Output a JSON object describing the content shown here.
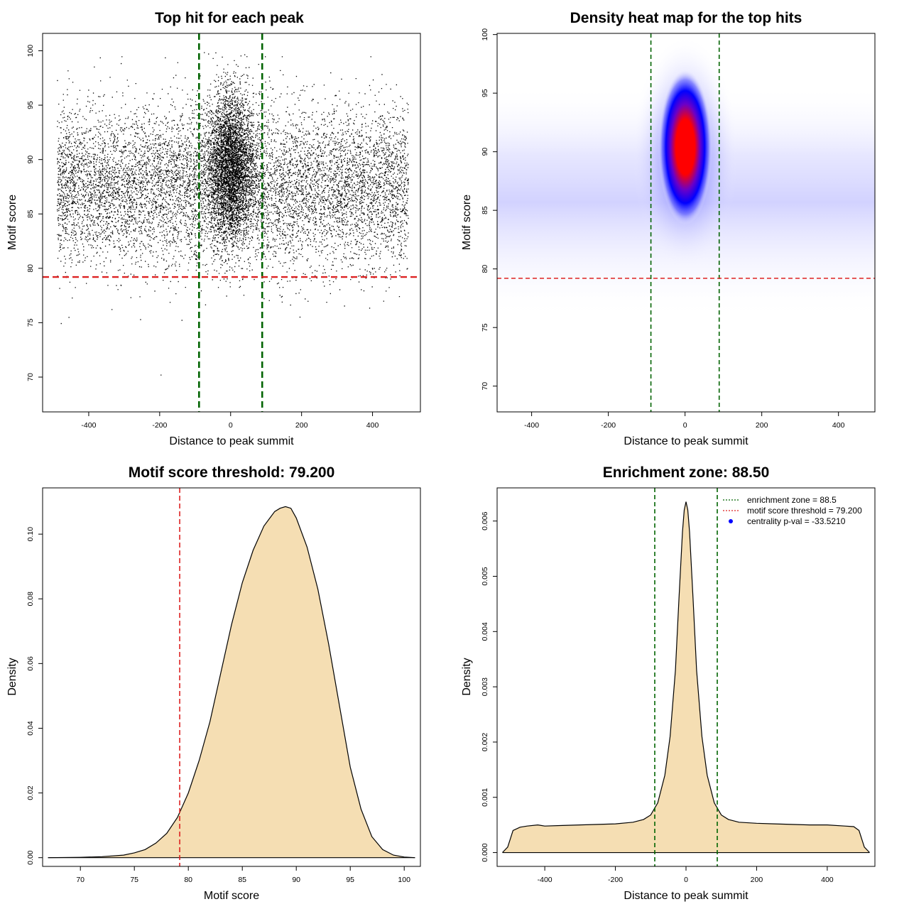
{
  "chart_data": [
    {
      "type": "scatter",
      "title": "Top hit for each peak",
      "xlabel": "Distance to peak summit",
      "ylabel": "Motif score",
      "xlim": [
        -530,
        535
      ],
      "ylim": [
        66.8,
        101.6
      ],
      "xticks": [
        -400,
        -200,
        0,
        200,
        400
      ],
      "yticks": [
        70,
        75,
        80,
        85,
        90,
        95,
        100
      ],
      "points_sampled": {
        "background_x_range": [
          -490,
          500
        ],
        "background_score_mean": 87.5,
        "central_x_range": [
          -90,
          90
        ],
        "central_score_mean": 89.5
      },
      "vlines": [
        -89,
        89
      ],
      "hline": 79.2,
      "vline_color": "#006400",
      "hline_color": "#dd2222"
    },
    {
      "type": "heatmap",
      "title": "Density heat map for the top hits",
      "xlabel": "Distance to peak summit",
      "ylabel": "Motif score",
      "xlim": [
        -490,
        495
      ],
      "ylim": [
        67.8,
        100.1
      ],
      "xticks": [
        -400,
        -200,
        0,
        200,
        400
      ],
      "yticks": [
        70,
        75,
        80,
        85,
        90,
        95,
        100
      ],
      "peak": {
        "x": 0,
        "score": 90.5
      },
      "vlines": [
        -89,
        89
      ],
      "hline": 79.2,
      "colors": [
        "#ffffff",
        "#0000ff",
        "#ff0000"
      ]
    },
    {
      "type": "area",
      "title": "Motif score threshold: 79.200",
      "xlabel": "Motif score",
      "ylabel": "Density",
      "xlim": [
        66.5,
        101.5
      ],
      "ylim": [
        -0.0027,
        0.1143
      ],
      "xticks": [
        70,
        75,
        80,
        85,
        90,
        95,
        100
      ],
      "yticks": [
        0.0,
        0.02,
        0.04,
        0.06,
        0.08,
        0.1
      ],
      "ytick_labels": [
        "0.00",
        "0.02",
        "0.04",
        "0.06",
        "0.08",
        "0.10"
      ],
      "x": [
        67,
        70,
        72,
        74,
        75,
        76,
        77,
        78,
        79,
        80,
        81,
        82,
        83,
        84,
        85,
        86,
        87,
        88,
        88.5,
        89,
        89.5,
        90,
        91,
        92,
        93,
        94,
        95,
        96,
        97,
        98,
        99,
        100,
        101
      ],
      "y": [
        0.0,
        0.0001,
        0.0003,
        0.0008,
        0.0015,
        0.0025,
        0.0045,
        0.0075,
        0.0125,
        0.02,
        0.03,
        0.042,
        0.057,
        0.072,
        0.085,
        0.095,
        0.1025,
        0.107,
        0.108,
        0.1085,
        0.108,
        0.105,
        0.096,
        0.083,
        0.066,
        0.047,
        0.028,
        0.015,
        0.0065,
        0.0025,
        0.0008,
        0.0002,
        0.0
      ],
      "vline": 79.2,
      "fill_color": "#f5deb3",
      "vline_color": "#dd2222"
    },
    {
      "type": "area",
      "title": "Enrichment zone: 88.50",
      "xlabel": "Distance to peak summit",
      "ylabel": "Density",
      "xlim": [
        -535,
        535
      ],
      "ylim": [
        -0.00025,
        0.0066
      ],
      "xticks": [
        -400,
        -200,
        0,
        200,
        400
      ],
      "yticks": [
        0.0,
        0.001,
        0.002,
        0.003,
        0.004,
        0.005,
        0.006
      ],
      "ytick_labels": [
        "0.000",
        "0.001",
        "0.002",
        "0.003",
        "0.004",
        "0.005",
        "0.006"
      ],
      "x": [
        -520,
        -505,
        -490,
        -470,
        -450,
        -420,
        -400,
        -350,
        -300,
        -250,
        -200,
        -150,
        -120,
        -100,
        -80,
        -60,
        -45,
        -30,
        -20,
        -10,
        -5,
        0,
        5,
        10,
        20,
        30,
        45,
        60,
        80,
        100,
        120,
        150,
        200,
        250,
        300,
        350,
        400,
        450,
        475,
        490,
        505,
        520
      ],
      "y": [
        0.0,
        0.0001,
        0.0004,
        0.00046,
        0.00048,
        0.0005,
        0.00048,
        0.00049,
        0.0005,
        0.00051,
        0.00052,
        0.00055,
        0.0006,
        0.00068,
        0.0009,
        0.0014,
        0.0021,
        0.0033,
        0.0046,
        0.0058,
        0.0062,
        0.00635,
        0.0062,
        0.0058,
        0.0046,
        0.0033,
        0.0021,
        0.0014,
        0.0009,
        0.00068,
        0.0006,
        0.00055,
        0.00053,
        0.00052,
        0.00051,
        0.0005,
        0.0005,
        0.00048,
        0.00047,
        0.0004,
        0.0001,
        0.0
      ],
      "vlines": [
        -88.5,
        88.5
      ],
      "fill_color": "#f5deb3",
      "legend": {
        "position": "top-right",
        "entries": [
          {
            "label": "enrichment zone = 88.5",
            "style": "dotted",
            "color": "#006400"
          },
          {
            "label": "motif score threshold = 79.200",
            "style": "dotted",
            "color": "#dd2222"
          },
          {
            "label": "centrality p-val = -33.5210",
            "style": "point",
            "color": "#0000ff"
          }
        ]
      }
    }
  ]
}
